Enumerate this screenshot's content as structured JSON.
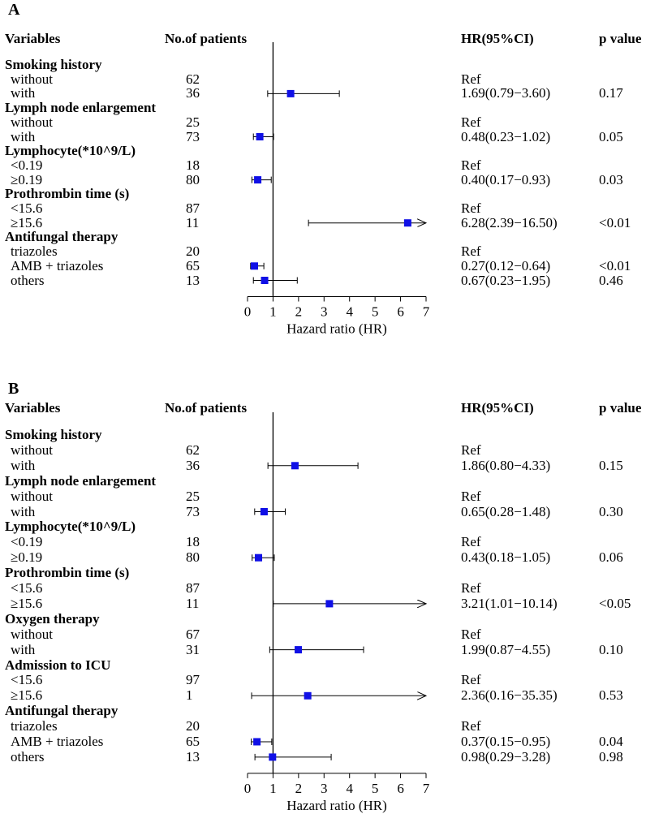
{
  "chart_data": [
    {
      "type": "forest",
      "panel_letter": "A",
      "headers": {
        "variables": "Variables",
        "patients": "No.of patients",
        "hr": "HR(95%CI)",
        "p": "p value"
      },
      "xlabel": "Hazard ratio (HR)",
      "xlim": [
        0,
        7
      ],
      "xticks": [
        "0",
        "1",
        "2",
        "3",
        "4",
        "5",
        "6",
        "7"
      ],
      "reference_line": 1,
      "rows": [
        {
          "kind": "group",
          "label": "Smoking history"
        },
        {
          "kind": "item",
          "label": "without",
          "n": "62",
          "hr_text": "Ref",
          "p": ""
        },
        {
          "kind": "item",
          "label": "with",
          "n": "36",
          "hr": 1.69,
          "lo": 0.79,
          "hi": 3.6,
          "hr_text": "1.69(0.79−3.60)",
          "p": "0.17"
        },
        {
          "kind": "group",
          "label": "Lymph node enlargement"
        },
        {
          "kind": "item",
          "label": "without",
          "n": "25",
          "hr_text": "Ref",
          "p": ""
        },
        {
          "kind": "item",
          "label": "with",
          "n": "73",
          "hr": 0.48,
          "lo": 0.23,
          "hi": 1.02,
          "hr_text": "0.48(0.23−1.02)",
          "p": "0.05"
        },
        {
          "kind": "group",
          "label": "Lymphocyte(*10^9/L)"
        },
        {
          "kind": "item",
          "label": "<0.19",
          "n": "18",
          "hr_text": "Ref",
          "p": ""
        },
        {
          "kind": "item",
          "label": "≥0.19",
          "n": "80",
          "hr": 0.4,
          "lo": 0.17,
          "hi": 0.93,
          "hr_text": "0.40(0.17−0.93)",
          "p": "0.03"
        },
        {
          "kind": "group",
          "label": "Prothrombin time (s)"
        },
        {
          "kind": "item",
          "label": "<15.6",
          "n": "87",
          "hr_text": "Ref",
          "p": ""
        },
        {
          "kind": "item",
          "label": "≥15.6",
          "n": "11",
          "hr": 6.28,
          "lo": 2.39,
          "hi": 16.5,
          "hr_text": "6.28(2.39−16.50)",
          "p": "<0.01"
        },
        {
          "kind": "group",
          "label": "Antifungal therapy"
        },
        {
          "kind": "item",
          "label": "triazoles",
          "n": "20",
          "hr_text": "Ref",
          "p": ""
        },
        {
          "kind": "item",
          "label": "AMB + triazoles",
          "n": "65",
          "hr": 0.27,
          "lo": 0.12,
          "hi": 0.64,
          "hr_text": "0.27(0.12−0.64)",
          "p": "<0.01"
        },
        {
          "kind": "item",
          "label": "others",
          "n": "13",
          "hr": 0.67,
          "lo": 0.23,
          "hi": 1.95,
          "hr_text": "0.67(0.23−1.95)",
          "p": "0.46"
        }
      ]
    },
    {
      "type": "forest",
      "panel_letter": "B",
      "headers": {
        "variables": "Variables",
        "patients": "No.of patients",
        "hr": "HR(95%CI)",
        "p": "p value"
      },
      "xlabel": "Hazard ratio (HR)",
      "xlim": [
        0,
        7
      ],
      "xticks": [
        "0",
        "1",
        "2",
        "3",
        "4",
        "5",
        "6",
        "7"
      ],
      "reference_line": 1,
      "rows": [
        {
          "kind": "group",
          "label": "Smoking history"
        },
        {
          "kind": "item",
          "label": "without",
          "n": "62",
          "hr_text": "Ref",
          "p": ""
        },
        {
          "kind": "item",
          "label": "with",
          "n": "36",
          "hr": 1.86,
          "lo": 0.8,
          "hi": 4.33,
          "hr_text": "1.86(0.80−4.33)",
          "p": "0.15"
        },
        {
          "kind": "group",
          "label": "Lymph node enlargement"
        },
        {
          "kind": "item",
          "label": "without",
          "n": "25",
          "hr_text": "Ref",
          "p": ""
        },
        {
          "kind": "item",
          "label": "with",
          "n": "73",
          "hr": 0.65,
          "lo": 0.28,
          "hi": 1.48,
          "hr_text": "0.65(0.28−1.48)",
          "p": "0.30"
        },
        {
          "kind": "group",
          "label": "Lymphocyte(*10^9/L)"
        },
        {
          "kind": "item",
          "label": "<0.19",
          "n": "18",
          "hr_text": "Ref",
          "p": ""
        },
        {
          "kind": "item",
          "label": "≥0.19",
          "n": "80",
          "hr": 0.43,
          "lo": 0.18,
          "hi": 1.05,
          "hr_text": "0.43(0.18−1.05)",
          "p": "0.06"
        },
        {
          "kind": "group",
          "label": "Prothrombin time (s)"
        },
        {
          "kind": "item",
          "label": "<15.6",
          "n": "87",
          "hr_text": "Ref",
          "p": ""
        },
        {
          "kind": "item",
          "label": "≥15.6",
          "n": "11",
          "hr": 3.21,
          "lo": 1.01,
          "hi": 10.14,
          "hr_text": "3.21(1.01−10.14)",
          "p": "<0.05"
        },
        {
          "kind": "group",
          "label": "Oxygen therapy"
        },
        {
          "kind": "item",
          "label": "without",
          "n": "67",
          "hr_text": "Ref",
          "p": ""
        },
        {
          "kind": "item",
          "label": "with",
          "n": "31",
          "hr": 1.99,
          "lo": 0.87,
          "hi": 4.55,
          "hr_text": "1.99(0.87−4.55)",
          "p": "0.10"
        },
        {
          "kind": "group",
          "label": "Admission to ICU"
        },
        {
          "kind": "item",
          "label": "<15.6",
          "n": "97",
          "hr_text": "Ref",
          "p": ""
        },
        {
          "kind": "item",
          "label": "≥15.6",
          "n": "1",
          "hr": 2.36,
          "lo": 0.16,
          "hi": 35.35,
          "hr_text": "2.36(0.16−35.35)",
          "p": "0.53"
        },
        {
          "kind": "group",
          "label": "Antifungal therapy"
        },
        {
          "kind": "item",
          "label": "triazoles",
          "n": "20",
          "hr_text": "Ref",
          "p": ""
        },
        {
          "kind": "item",
          "label": "AMB + triazoles",
          "n": "65",
          "hr": 0.37,
          "lo": 0.15,
          "hi": 0.95,
          "hr_text": "0.37(0.15−0.95)",
          "p": "0.04"
        },
        {
          "kind": "item",
          "label": "others",
          "n": "13",
          "hr": 0.98,
          "lo": 0.29,
          "hi": 3.28,
          "hr_text": "0.98(0.29−3.28)",
          "p": "0.98"
        }
      ]
    }
  ],
  "colors": {
    "marker": "#1010e6",
    "line": "#000000"
  }
}
